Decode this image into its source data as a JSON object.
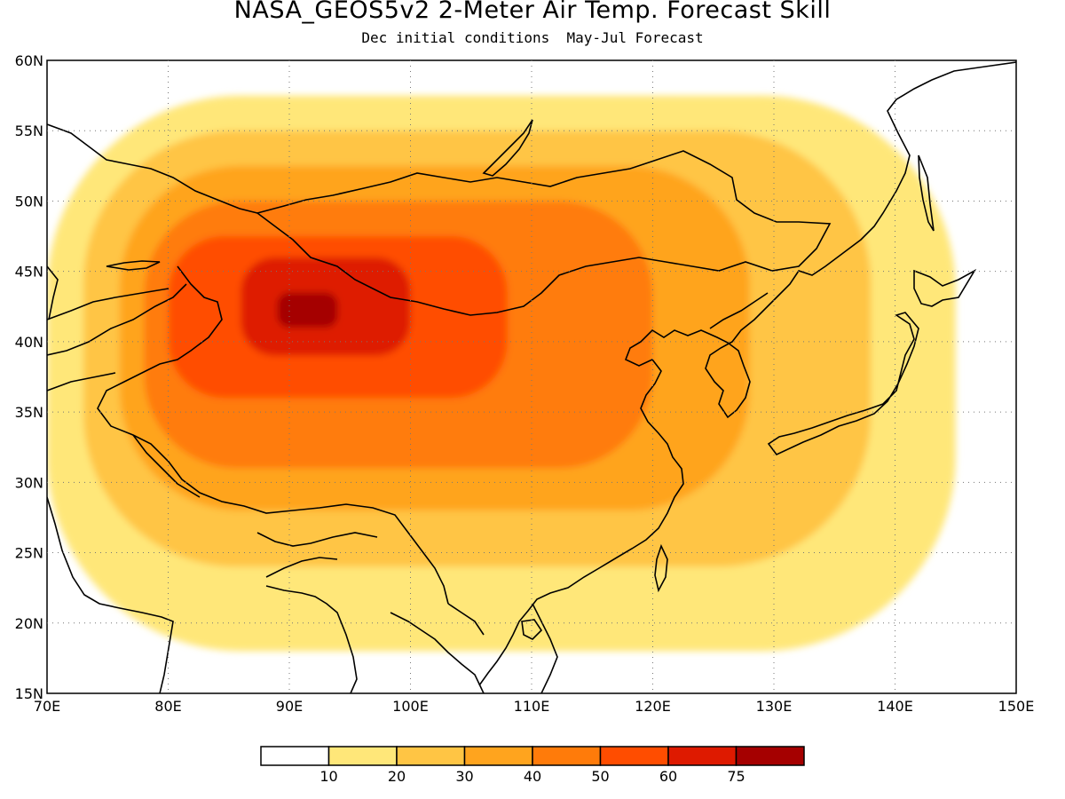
{
  "title": "NASA_GEOS5v2 2-Meter Air Temp. Forecast Skill",
  "subtitle": "Dec initial conditions  May-Jul Forecast",
  "axes": {
    "lon_ticks": [
      "70E",
      "80E",
      "90E",
      "100E",
      "110E",
      "120E",
      "130E",
      "140E",
      "150E"
    ],
    "lat_ticks": [
      "15N",
      "20N",
      "25N",
      "30N",
      "35N",
      "40N",
      "45N",
      "50N",
      "55N",
      "60N"
    ],
    "lon_range": [
      70,
      150
    ],
    "lat_range": [
      15,
      60
    ],
    "grid": "dotted"
  },
  "colorbar": {
    "labels": [
      "10",
      "20",
      "30",
      "40",
      "50",
      "60",
      "75"
    ],
    "colors": [
      "#ffffff",
      "#ffe779",
      "#ffc544",
      "#ffa41e",
      "#ff7b0a",
      "#ff4d00",
      "#de1a00",
      "#a50000"
    ]
  },
  "map_regions": [
    {
      "level": 1,
      "lon": [
        70,
        145
      ],
      "lat": [
        18,
        57.5
      ]
    },
    {
      "level": 2,
      "lon": [
        73,
        138
      ],
      "lat": [
        24,
        55
      ]
    },
    {
      "level": 3,
      "lon": [
        76,
        128
      ],
      "lat": [
        28,
        52.5
      ]
    },
    {
      "level": 4,
      "lon": [
        78,
        120
      ],
      "lat": [
        31,
        50
      ]
    },
    {
      "level": 5,
      "lon": [
        80,
        108
      ],
      "lat": [
        36,
        47.5
      ]
    },
    {
      "level": 6,
      "lon": [
        86,
        100
      ],
      "lat": [
        39,
        46
      ]
    },
    {
      "level": 7,
      "lon": [
        89,
        94
      ],
      "lat": [
        41,
        43.5
      ]
    }
  ]
}
